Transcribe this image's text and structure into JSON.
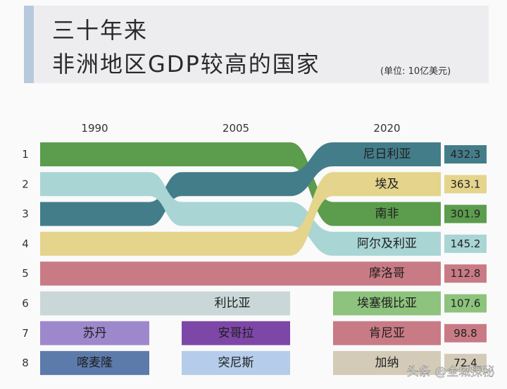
{
  "title": {
    "line1": "三十年来",
    "line2": "非洲地区GDP较高的国家",
    "unit": "(单位: 10亿美元)"
  },
  "chart_data": {
    "type": "bump",
    "years": [
      "1990",
      "2005",
      "2020"
    ],
    "ranks": [
      "1",
      "2",
      "3",
      "4",
      "5",
      "6",
      "7",
      "8"
    ],
    "countries": [
      {
        "name": "尼日利亚",
        "color": "#447d8a",
        "ranks": [
          3,
          2,
          1
        ],
        "label_at": 2
      },
      {
        "name": "埃及",
        "color": "#e4d48c",
        "ranks": [
          4,
          4,
          2
        ],
        "label_at": 2
      },
      {
        "name": "南非",
        "color": "#5c9c4d",
        "ranks": [
          1,
          1,
          3
        ],
        "label_at": 2
      },
      {
        "name": "阿尔及利亚",
        "color": "#a9d5d5",
        "ranks": [
          2,
          3,
          4
        ],
        "label_at": 2
      },
      {
        "name": "摩洛哥",
        "color": "#c97b85",
        "ranks": [
          5,
          5,
          5
        ],
        "label_at": 2
      },
      {
        "name": "利比亚",
        "color": "#c9d7d8",
        "ranks": [
          6,
          6,
          null
        ],
        "label_at": 1
      },
      {
        "name": "埃塞俄比亚",
        "color": "#8ec37d",
        "ranks": [
          null,
          null,
          6
        ],
        "label_at": 2
      },
      {
        "name": "苏丹",
        "color": "#9d88cc",
        "ranks": [
          7,
          null,
          null
        ],
        "label_at": 0
      },
      {
        "name": "安哥拉",
        "color": "#7d47a8",
        "ranks": [
          null,
          7,
          null
        ],
        "label_at": 1
      },
      {
        "name": "肯尼亚",
        "color": "#c97b85",
        "ranks": [
          null,
          null,
          7
        ],
        "label_at": 2
      },
      {
        "name": "喀麦隆",
        "color": "#5c7aaa",
        "ranks": [
          8,
          null,
          null
        ],
        "label_at": 0
      },
      {
        "name": "突尼斯",
        "color": "#b5cdea",
        "ranks": [
          null,
          8,
          null
        ],
        "label_at": 1
      },
      {
        "name": "加纳",
        "color": "#d3cbb8",
        "ranks": [
          null,
          null,
          8
        ],
        "label_at": 2
      }
    ],
    "values_2020": [
      {
        "rank": 1,
        "value": "432.3",
        "color": "#447d8a"
      },
      {
        "rank": 2,
        "value": "363.1",
        "color": "#e4d48c"
      },
      {
        "rank": 3,
        "value": "301.9",
        "color": "#5c9c4d"
      },
      {
        "rank": 4,
        "value": "145.2",
        "color": "#a9d5d5"
      },
      {
        "rank": 5,
        "value": "112.8",
        "color": "#c97b85"
      },
      {
        "rank": 6,
        "value": "107.6",
        "color": "#8ec37d"
      },
      {
        "rank": 7,
        "value": "98.8",
        "color": "#c97b85"
      },
      {
        "rank": 8,
        "value": "72.4",
        "color": "#d3cbb8"
      }
    ]
  },
  "watermark": "头条 @全城探秘"
}
